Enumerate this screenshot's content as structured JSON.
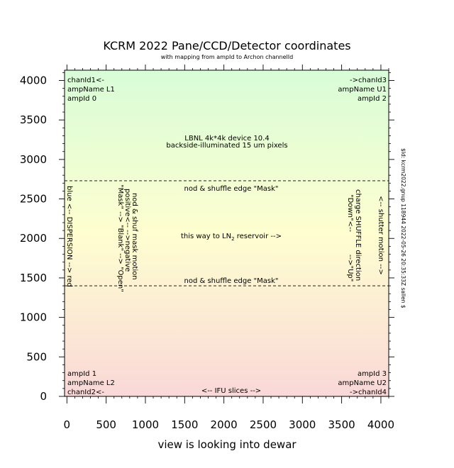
{
  "chart_data": {
    "type": "annotated_region",
    "title": "KCRM 2022 Pane/CCD/Detector coordinates",
    "subtitle": "with mapping from ampId to Archon channelId",
    "xlabel": "view is looking into dewar",
    "ylabel": "",
    "xlim": [
      -30,
      4100
    ],
    "ylim": [
      0,
      4130
    ],
    "xticks": [
      0,
      500,
      1000,
      1500,
      2000,
      2500,
      3000,
      3500,
      4000
    ],
    "yticks": [
      0,
      500,
      1000,
      1500,
      2000,
      2500,
      3000,
      3500,
      4000
    ],
    "x_minor_step": 100,
    "y_minor_step": 100,
    "background_gradient": {
      "bottom": "#fad8d8",
      "middle": "#fefed0",
      "top": "#d8fdd8"
    },
    "dashed_lines_y": [
      1400,
      2730
    ],
    "corner_labels": {
      "top_left": [
        "chanId1<-",
        "ampName L1",
        "ampId 0"
      ],
      "top_right": [
        "->chanId3",
        "ampName U1",
        "ampId 2"
      ],
      "bottom_left": [
        "ampId 1",
        "ampName L2",
        "chanId2<-"
      ],
      "bottom_right": [
        "ampId 3",
        "ampName U2",
        "->chanId4"
      ]
    },
    "annotations": {
      "device_line1": "LBNL 4k*4k device 10.4",
      "device_line2": "backside-illuminated 15 um pixels",
      "nod_edge_top": "nod & shuffle edge \"Mask\"",
      "nod_edge_bottom": "nod & shuffle edge \"Mask\"",
      "reservoir_pre": "this way to LN",
      "reservoir_sub": "2",
      "reservoir_post": " reservoir -->",
      "ifu": "<-- IFU slices -->",
      "dispersion": "blue <-- DISPERSION --> red",
      "mask_motion_1": "nod & shuf mask motion",
      "mask_motion_2": "positive<-- -->negative",
      "mask_motion_3": "\"Mask\" --> \"Blank\" --> \"Open\"",
      "charge_shuffle_1": "charge SHUFFLE direction",
      "charge_shuffle_2": "\"Down\"<--          -->\"Up\"",
      "shutter": "<-- shutter motion -->",
      "rcs_id": "$Id: kcrm2022.gnup 118944 2022-05-26 20:35:33Z sallen $"
    }
  }
}
